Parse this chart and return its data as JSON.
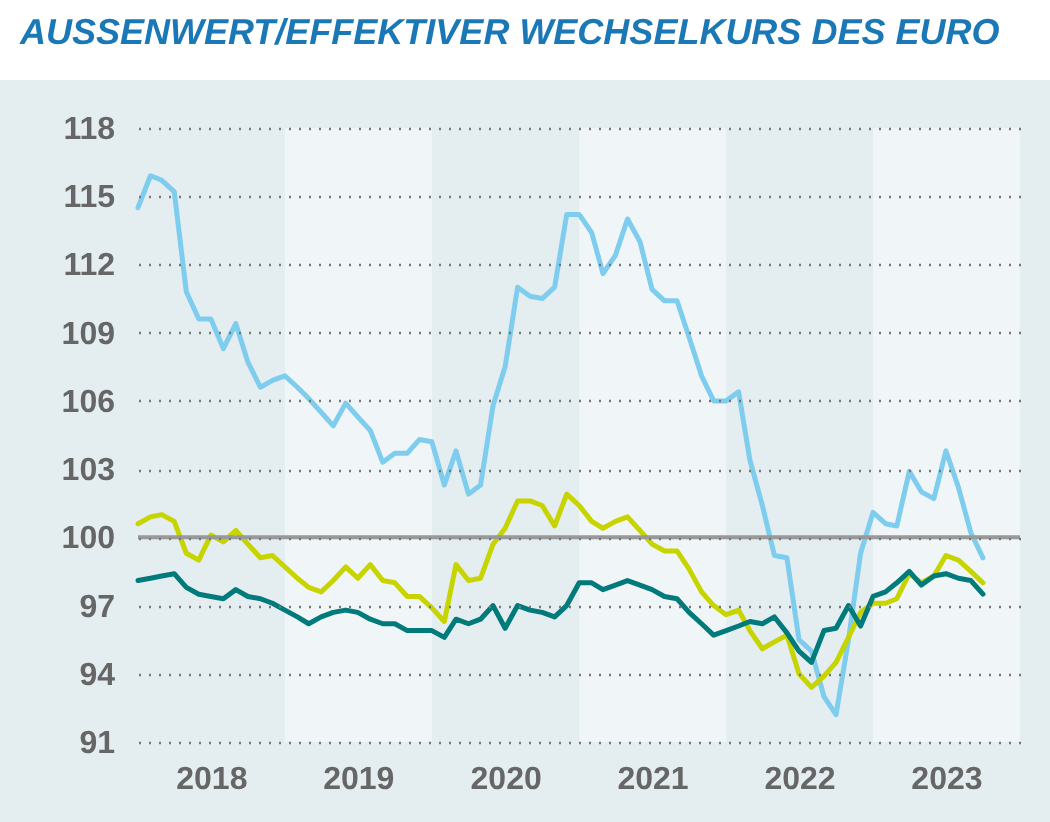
{
  "chart_data": {
    "type": "line",
    "title": "AUSSENWERT/EFFEKTIVER WECHSELKURS DES EURO",
    "x": [
      "2018-01",
      "2018-02",
      "2018-03",
      "2018-04",
      "2018-05",
      "2018-06",
      "2018-07",
      "2018-08",
      "2018-09",
      "2018-10",
      "2018-11",
      "2018-12",
      "2019-01",
      "2019-02",
      "2019-03",
      "2019-04",
      "2019-05",
      "2019-06",
      "2019-07",
      "2019-08",
      "2019-09",
      "2019-10",
      "2019-11",
      "2019-12",
      "2020-01",
      "2020-02",
      "2020-03",
      "2020-04",
      "2020-05",
      "2020-06",
      "2020-07",
      "2020-08",
      "2020-09",
      "2020-10",
      "2020-11",
      "2020-12",
      "2021-01",
      "2021-02",
      "2021-03",
      "2021-04",
      "2021-05",
      "2021-06",
      "2021-07",
      "2021-08",
      "2021-09",
      "2021-10",
      "2021-11",
      "2021-12",
      "2022-01",
      "2022-02",
      "2022-03",
      "2022-04",
      "2022-05",
      "2022-06",
      "2022-07",
      "2022-08",
      "2022-09",
      "2022-10",
      "2022-11",
      "2022-12",
      "2023-01",
      "2023-02",
      "2023-03",
      "2023-04",
      "2023-05",
      "2023-06",
      "2023-07",
      "2023-08",
      "2023-09",
      "2023-10"
    ],
    "series": [
      {
        "color": "#7fcdee",
        "values": [
          114.5,
          115.9,
          115.7,
          115.2,
          110.8,
          109.6,
          109.6,
          108.3,
          109.4,
          107.7,
          106.6,
          106.9,
          107.1,
          106.6,
          106.1,
          105.5,
          104.9,
          105.9,
          105.3,
          104.7,
          103.3,
          103.7,
          103.7,
          104.3,
          104.2,
          102.3,
          103.8,
          101.9,
          102.3,
          105.8,
          107.5,
          111.0,
          110.6,
          110.5,
          111.0,
          114.2,
          114.2,
          113.4,
          111.6,
          112.4,
          114.0,
          113.0,
          110.9,
          110.4,
          110.4,
          108.8,
          107.1,
          106.0,
          106.0,
          106.4,
          103.4,
          101.4,
          99.2,
          99.1,
          95.5,
          95.0,
          93.0,
          92.2,
          95.5,
          99.3,
          101.1,
          100.6,
          100.5,
          102.9,
          102.0,
          101.7,
          103.8,
          102.2,
          100.2,
          99.1
        ]
      },
      {
        "color": "#c8d400",
        "values": [
          100.6,
          100.9,
          101.0,
          100.7,
          99.3,
          99.0,
          100.1,
          99.8,
          100.3,
          99.7,
          99.1,
          99.2,
          98.7,
          98.2,
          97.8,
          97.6,
          98.1,
          98.7,
          98.2,
          98.8,
          98.1,
          98.0,
          97.4,
          97.4,
          96.9,
          96.3,
          98.8,
          98.1,
          98.2,
          99.7,
          100.4,
          101.6,
          101.6,
          101.4,
          100.5,
          101.9,
          101.4,
          100.7,
          100.4,
          100.7,
          100.9,
          100.3,
          99.7,
          99.4,
          99.4,
          98.6,
          97.6,
          97.0,
          96.6,
          96.8,
          95.9,
          95.1,
          95.4,
          95.7,
          94.0,
          93.4,
          93.9,
          94.5,
          95.6,
          96.7,
          97.1,
          97.1,
          97.3,
          98.4,
          98.0,
          98.3,
          99.2,
          99.0,
          98.5,
          98.0
        ]
      },
      {
        "color": "#007a7a",
        "values": [
          98.1,
          98.2,
          98.3,
          98.4,
          97.8,
          97.5,
          97.4,
          97.3,
          97.7,
          97.4,
          97.3,
          97.1,
          96.8,
          96.5,
          96.2,
          96.5,
          96.7,
          96.8,
          96.7,
          96.4,
          96.2,
          96.2,
          95.9,
          95.9,
          95.9,
          95.6,
          96.4,
          96.2,
          96.4,
          97.0,
          96.0,
          97.0,
          96.8,
          96.7,
          96.5,
          97.0,
          98.0,
          98.0,
          97.7,
          97.9,
          98.1,
          97.9,
          97.7,
          97.4,
          97.3,
          96.7,
          96.2,
          95.7,
          95.9,
          96.1,
          96.3,
          96.2,
          96.5,
          95.8,
          95.0,
          94.5,
          95.9,
          96.0,
          97.0,
          96.1,
          97.4,
          97.6,
          98.0,
          98.5,
          97.9,
          98.3,
          98.4,
          98.2,
          98.1,
          97.5
        ]
      }
    ],
    "xlim": [
      "2018-01",
      "2024-01"
    ],
    "xticks": [
      {
        "value": "2018-07",
        "label": "2018"
      },
      {
        "value": "2019-07",
        "label": "2019"
      },
      {
        "value": "2020-07",
        "label": "2020"
      },
      {
        "value": "2021-07",
        "label": "2021"
      },
      {
        "value": "2022-07",
        "label": "2022"
      },
      {
        "value": "2023-07",
        "label": "2023"
      }
    ],
    "ylim": [
      91,
      118
    ],
    "yticks": [
      91,
      94,
      97,
      100,
      103,
      106,
      109,
      112,
      115,
      118
    ],
    "ref_lines": [
      {
        "axis": "y",
        "value": 100,
        "color": "#999999"
      }
    ],
    "bands": [
      {
        "axis": "x",
        "from": "2019-01",
        "to": "2020-01",
        "color": "#f0f6f7"
      },
      {
        "axis": "x",
        "from": "2021-01",
        "to": "2022-01",
        "color": "#f0f6f7"
      },
      {
        "axis": "x",
        "from": "2023-01",
        "to": "2024-01",
        "color": "#f0f6f7"
      }
    ],
    "grid": "y",
    "marker": "none",
    "line_style": "solid"
  }
}
